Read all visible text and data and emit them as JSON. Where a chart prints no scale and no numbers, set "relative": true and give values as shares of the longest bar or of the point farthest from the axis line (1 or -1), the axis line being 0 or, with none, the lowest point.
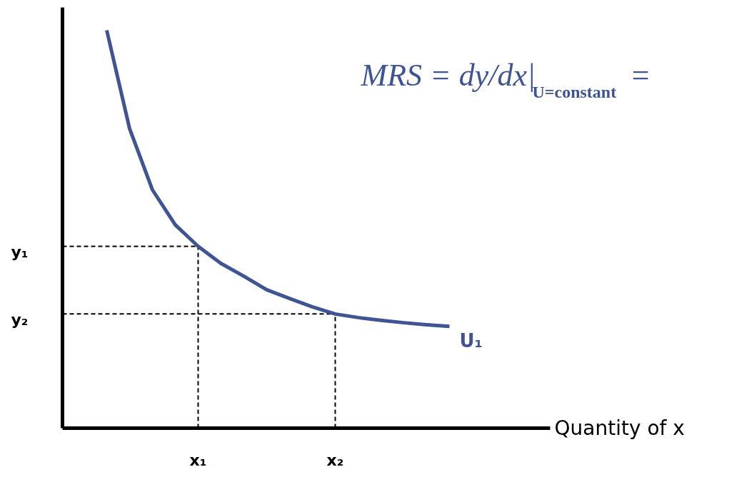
{
  "chart_data": {
    "type": "line",
    "relative": true,
    "xlabel": "Quantity of x",
    "annotations": [
      "MRS = dy/dx|$_{U=constant}$ ="
    ],
    "categories": [
      null,
      null,
      null,
      null,
      "x₁",
      null,
      null,
      null,
      null,
      null,
      "x₂",
      null,
      null,
      null,
      null,
      null
    ],
    "grid": false,
    "legend": false,
    "marker": "none",
    "ref_lines": [
      {
        "axis": "y",
        "value": 0.457,
        "label": "y₁",
        "line_style": "dashed"
      },
      {
        "axis": "y",
        "value": 0.287,
        "label": "y₂",
        "line_style": "dashed"
      },
      {
        "axis": "x",
        "value": "x₁",
        "line_style": "dashed"
      },
      {
        "axis": "x",
        "value": "x₂",
        "line_style": "dashed"
      }
    ],
    "series": [
      {
        "name": "U₁",
        "color": "#3f5493",
        "values": [
          1,
          0.753,
          0.599,
          0.511,
          0.457,
          0.414,
          0.382,
          0.348,
          0.326,
          0.305,
          0.287,
          0.278,
          0.271,
          0.265,
          0.26,
          0.256
        ]
      }
    ]
  }
}
